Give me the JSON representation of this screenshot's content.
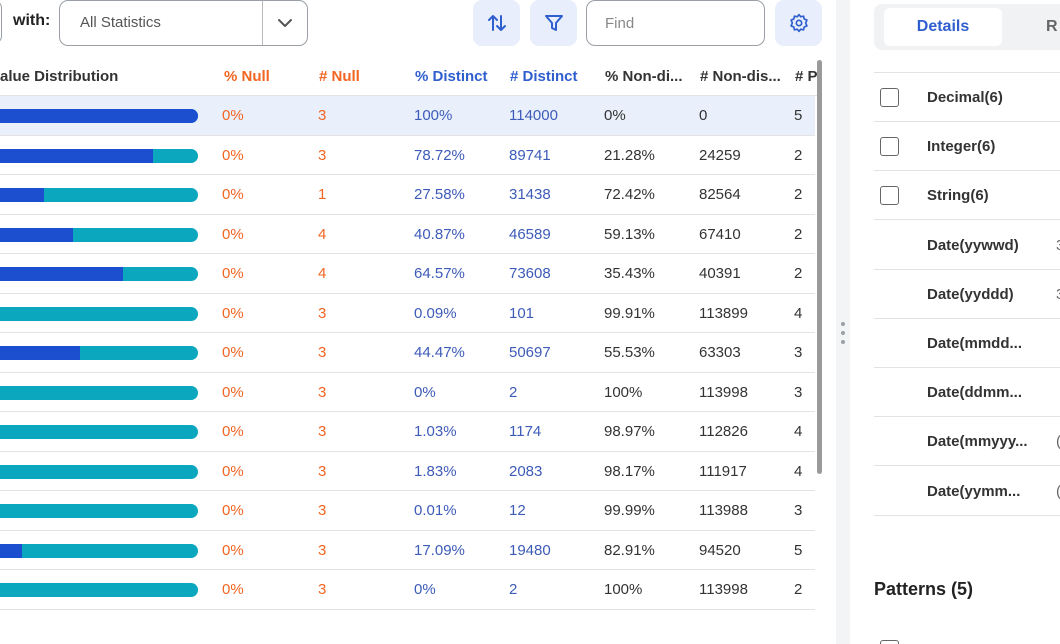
{
  "toolbar": {
    "with_label": "with:",
    "statistics_select": {
      "value": "All Statistics"
    },
    "sort_icon": "sort-arrows-icon",
    "filter_icon": "filter-funnel-icon",
    "find_placeholder": "Find",
    "settings_icon": "gear-icon"
  },
  "table": {
    "headers": {
      "value_distribution": "alue Distribution",
      "pct_null": "% Null",
      "num_null": "# Null",
      "pct_distinct": "% Distinct",
      "num_distinct": "# Distinct",
      "pct_non_distinct": "% Non-di...",
      "num_non_distinct": "# Non-dis...",
      "cut": "# P"
    },
    "rows": [
      {
        "distinct_fraction": 1.0,
        "pct_null": "0%",
        "num_null": "3",
        "pct_distinct": "100%",
        "num_distinct": "114000",
        "pct_non_distinct": "0%",
        "num_non_distinct": "0",
        "last": "5",
        "selected": true
      },
      {
        "distinct_fraction": 0.7872,
        "pct_null": "0%",
        "num_null": "3",
        "pct_distinct": "78.72%",
        "num_distinct": "89741",
        "pct_non_distinct": "21.28%",
        "num_non_distinct": "24259",
        "last": "2"
      },
      {
        "distinct_fraction": 0.2758,
        "pct_null": "0%",
        "num_null": "1",
        "pct_distinct": "27.58%",
        "num_distinct": "31438",
        "pct_non_distinct": "72.42%",
        "num_non_distinct": "82564",
        "last": "2"
      },
      {
        "distinct_fraction": 0.4087,
        "pct_null": "0%",
        "num_null": "4",
        "pct_distinct": "40.87%",
        "num_distinct": "46589",
        "pct_non_distinct": "59.13%",
        "num_non_distinct": "67410",
        "last": "2"
      },
      {
        "distinct_fraction": 0.6457,
        "pct_null": "0%",
        "num_null": "4",
        "pct_distinct": "64.57%",
        "num_distinct": "73608",
        "pct_non_distinct": "35.43%",
        "num_non_distinct": "40391",
        "last": "2"
      },
      {
        "distinct_fraction": 0.0009,
        "pct_null": "0%",
        "num_null": "3",
        "pct_distinct": "0.09%",
        "num_distinct": "101",
        "pct_non_distinct": "99.91%",
        "num_non_distinct": "113899",
        "last": "4"
      },
      {
        "distinct_fraction": 0.4447,
        "pct_null": "0%",
        "num_null": "3",
        "pct_distinct": "44.47%",
        "num_distinct": "50697",
        "pct_non_distinct": "55.53%",
        "num_non_distinct": "63303",
        "last": "3"
      },
      {
        "distinct_fraction": 0.0,
        "pct_null": "0%",
        "num_null": "3",
        "pct_distinct": "0%",
        "num_distinct": "2",
        "pct_non_distinct": "100%",
        "num_non_distinct": "113998",
        "last": "3"
      },
      {
        "distinct_fraction": 0.0103,
        "pct_null": "0%",
        "num_null": "3",
        "pct_distinct": "1.03%",
        "num_distinct": "1174",
        "pct_non_distinct": "98.97%",
        "num_non_distinct": "112826",
        "last": "4"
      },
      {
        "distinct_fraction": 0.0183,
        "pct_null": "0%",
        "num_null": "3",
        "pct_distinct": "1.83%",
        "num_distinct": "2083",
        "pct_non_distinct": "98.17%",
        "num_non_distinct": "111917",
        "last": "4"
      },
      {
        "distinct_fraction": 0.0001,
        "pct_null": "0%",
        "num_null": "3",
        "pct_distinct": "0.01%",
        "num_distinct": "12",
        "pct_non_distinct": "99.99%",
        "num_non_distinct": "113988",
        "last": "3"
      },
      {
        "distinct_fraction": 0.1709,
        "pct_null": "0%",
        "num_null": "3",
        "pct_distinct": "17.09%",
        "num_distinct": "19480",
        "pct_non_distinct": "82.91%",
        "num_non_distinct": "94520",
        "last": "5"
      },
      {
        "distinct_fraction": 0.0,
        "pct_null": "0%",
        "num_null": "3",
        "pct_distinct": "0%",
        "num_distinct": "2",
        "pct_non_distinct": "100%",
        "num_non_distinct": "113998",
        "last": "2"
      }
    ]
  },
  "details_panel": {
    "tabs": {
      "active": "Details",
      "other": "R"
    },
    "items": [
      {
        "label": "Decimal(6)",
        "checkbox": true,
        "frag": ""
      },
      {
        "label": "Integer(6)",
        "checkbox": true,
        "frag": ""
      },
      {
        "label": "String(6)",
        "checkbox": true,
        "frag": ""
      },
      {
        "label": "Date(yywwd)",
        "checkbox": false,
        "frag": "3"
      },
      {
        "label": "Date(yyddd)",
        "checkbox": false,
        "frag": "3"
      },
      {
        "label": "Date(mmdd...",
        "checkbox": false,
        "frag": ""
      },
      {
        "label": "Date(ddmm...",
        "checkbox": false,
        "frag": ""
      },
      {
        "label": "Date(mmyyy...",
        "checkbox": false,
        "frag": "("
      },
      {
        "label": "Date(yymm...",
        "checkbox": false,
        "frag": "("
      }
    ],
    "patterns_title": "Patterns (5)"
  },
  "colors": {
    "accent": "#2f5fce",
    "null_orange": "#f26522",
    "bar_distinct": "#1b4fcf",
    "bar_non_distinct": "#0aa7bf",
    "selected_row": "#e9f0fc"
  }
}
